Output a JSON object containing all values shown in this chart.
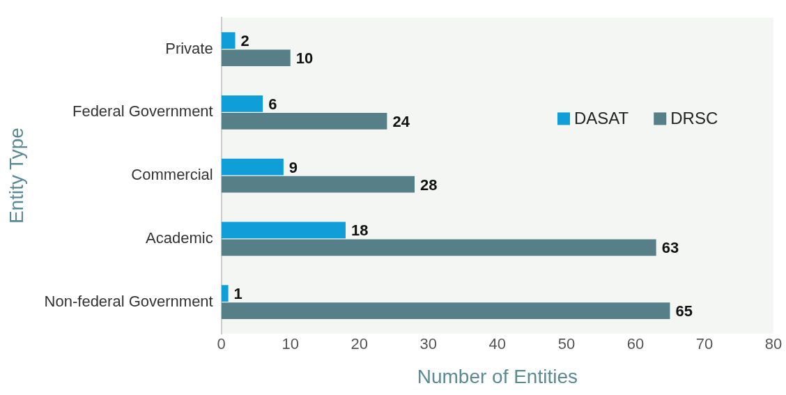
{
  "chart_data": {
    "type": "bar",
    "orientation": "horizontal",
    "xlabel": "Number of Entities",
    "ylabel": "Entity Type",
    "categories": [
      "Private",
      "Federal Government",
      "Commercial",
      "Academic",
      "Non-federal Government"
    ],
    "series": [
      {
        "name": "DASAT",
        "color": "#0f9ed8",
        "values": [
          2,
          6,
          9,
          18,
          1
        ]
      },
      {
        "name": "DRSC",
        "color": "#567f87",
        "values": [
          10,
          24,
          28,
          63,
          65
        ]
      }
    ],
    "xlim": [
      0,
      80
    ],
    "xticks": [
      0,
      10,
      20,
      30,
      40,
      50,
      60,
      70,
      80
    ],
    "grid": false,
    "legend": "right",
    "data_labels": true
  }
}
